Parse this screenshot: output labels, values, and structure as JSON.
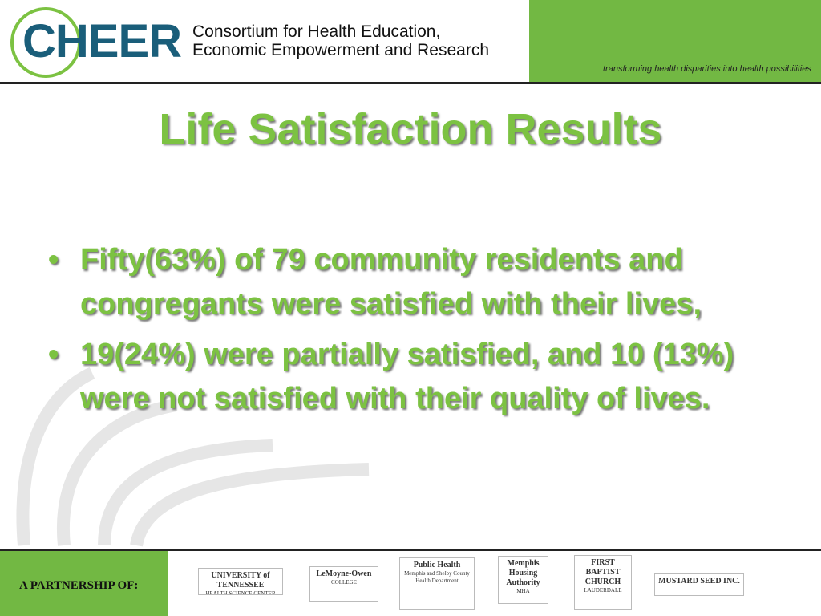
{
  "header": {
    "logo": "CHEER",
    "org_line1": "Consortium for Health Education,",
    "org_line2": "Economic Empowerment and Research",
    "tagline": "transforming health disparities into health possibilities"
  },
  "title": "Life Satisfaction Results",
  "bullets": [
    "Fifty(63%) of  79 community residents and congregants were satisfied with their lives,",
    "19(24%) were partially satisfied, and 10 (13%) were not satisfied with their quality of lives."
  ],
  "footer": {
    "label": "A PARTNERSHIP OF:",
    "partners": [
      {
        "name": "UNIVERSITY of TENNESSEE",
        "sub": "HEALTH SCIENCE CENTER"
      },
      {
        "name": "LeMoyne-Owen",
        "sub": "COLLEGE"
      },
      {
        "name": "Public Health",
        "sub": "Memphis and Shelby County Health Department"
      },
      {
        "name": "Memphis Housing Authority",
        "sub": "MHA"
      },
      {
        "name": "FIRST BAPTIST CHURCH",
        "sub": "LAUDERDALE"
      },
      {
        "name": "MUSTARD SEED INC.",
        "sub": ""
      }
    ]
  }
}
